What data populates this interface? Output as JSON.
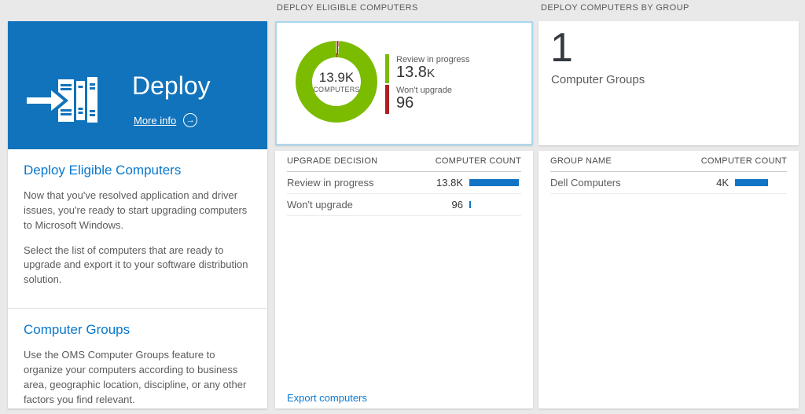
{
  "colors": {
    "tile_blue": "#1173BC",
    "link_blue": "#0C79D2",
    "bar_blue": "#1174C4",
    "selected_border_blue": "#A9D7ED",
    "green": "#7BBB00",
    "red": "#AE1E23"
  },
  "left_panel": {
    "tile_title": "Deploy",
    "more_info_label": "More info",
    "section1": {
      "heading": "Deploy Eligible Computers",
      "p1": "Now that you've resolved application and driver issues, you're ready to start upgrading computers to Microsoft Windows.",
      "p2": "Select the list of computers that are ready to upgrade and export it to your software distribution solution."
    },
    "section2": {
      "heading": "Computer Groups",
      "p1": "Use the OMS Computer Groups feature to organize your computers according to business area, geographic location, discipline, or any other factors you find relevant."
    }
  },
  "middle_panel": {
    "header": "DEPLOY ELIGIBLE COMPUTERS",
    "table": {
      "col_label": "UPGRADE DECISION",
      "col_count": "COMPUTER COUNT",
      "rows": [
        {
          "label": "Review in progress",
          "count": "13.8K",
          "bar_pct": 95
        },
        {
          "label": "Won't upgrade",
          "count": "96",
          "bar_pct": 3
        }
      ]
    },
    "export_link": "Export computers"
  },
  "right_panel": {
    "header": "DEPLOY COMPUTERS BY GROUP",
    "summary_count": "1",
    "summary_label": "Computer Groups",
    "table": {
      "col_label": "GROUP NAME",
      "col_count": "COMPUTER COUNT",
      "rows": [
        {
          "label": "Dell Computers",
          "count": "4K",
          "bar_pct": 63
        }
      ]
    }
  },
  "chart_data": {
    "type": "pie",
    "title": "DEPLOY ELIGIBLE COMPUTERS",
    "center_value": "13.9K",
    "center_label": "COMPUTERS",
    "legend_position": "right",
    "series": [
      {
        "name": "Review in progress",
        "value": 13800,
        "display_main": "13.8",
        "display_suffix": "K",
        "color": "#7BBB00"
      },
      {
        "name": "Won't upgrade",
        "value": 96,
        "display_main": "96",
        "display_suffix": "",
        "color": "#AE1E23"
      }
    ]
  }
}
